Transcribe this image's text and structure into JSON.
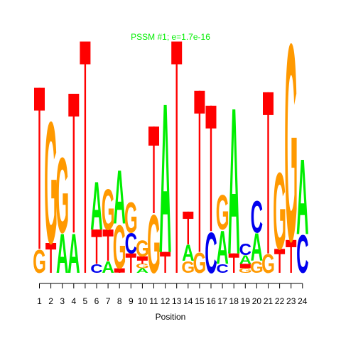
{
  "chart_data": {
    "type": "sequence-logo",
    "title": "PSSM #1; e=1.7e-16",
    "xlabel": "Position",
    "ylabel": "",
    "x_ticks": [
      "1",
      "2",
      "3",
      "4",
      "5",
      "6",
      "7",
      "8",
      "9",
      "10",
      "11",
      "12",
      "13",
      "14",
      "15",
      "16",
      "17",
      "18",
      "19",
      "20",
      "21",
      "22",
      "23",
      "24"
    ],
    "colors": {
      "A": "#00ee00",
      "C": "#0000ee",
      "G": "#ff9900",
      "T": "#ff0000",
      "title": "#00ee00"
    },
    "stacks": [
      {
        "position": 1,
        "letters": [
          {
            "base": "G",
            "height": 0.16
          },
          {
            "base": "T",
            "height": 1.08
          }
        ]
      },
      {
        "position": 2,
        "letters": [
          {
            "base": "T",
            "height": 0.2
          },
          {
            "base": "G",
            "height": 0.84
          }
        ]
      },
      {
        "position": 3,
        "letters": [
          {
            "base": "A",
            "height": 0.27
          },
          {
            "base": "G",
            "height": 0.52
          }
        ]
      },
      {
        "position": 4,
        "letters": [
          {
            "base": "A",
            "height": 0.27
          },
          {
            "base": "T",
            "height": 0.93
          }
        ]
      },
      {
        "position": 5,
        "letters": [
          {
            "base": "T",
            "height": 1.55
          }
        ]
      },
      {
        "position": 6,
        "letters": [
          {
            "base": "C",
            "height": 0.06
          },
          {
            "base": "T",
            "height": 0.23
          },
          {
            "base": "A",
            "height": 0.33
          }
        ]
      },
      {
        "position": 7,
        "letters": [
          {
            "base": "A",
            "height": 0.08
          },
          {
            "base": "T",
            "height": 0.21
          },
          {
            "base": "G",
            "height": 0.28
          }
        ]
      },
      {
        "position": 8,
        "letters": [
          {
            "base": "T",
            "height": 0.03
          },
          {
            "base": "G",
            "height": 0.3
          },
          {
            "base": "A",
            "height": 0.37
          }
        ]
      },
      {
        "position": 9,
        "letters": [
          {
            "base": "T",
            "height": 0.13
          },
          {
            "base": "C",
            "height": 0.14
          },
          {
            "base": "G",
            "height": 0.21
          }
        ]
      },
      {
        "position": 10,
        "letters": [
          {
            "base": "A",
            "height": 0.03
          },
          {
            "base": "G",
            "height": 0.03
          },
          {
            "base": "T",
            "height": 0.05
          },
          {
            "base": "G",
            "height": 0.11
          }
        ]
      },
      {
        "position": 11,
        "letters": [
          {
            "base": "G",
            "height": 0.4
          },
          {
            "base": "T",
            "height": 0.58
          }
        ]
      },
      {
        "position": 12,
        "letters": [
          {
            "base": "T",
            "height": 0.14
          },
          {
            "base": "A",
            "height": 1.03
          }
        ]
      },
      {
        "position": 13,
        "letters": [
          {
            "base": "T",
            "height": 1.55
          }
        ]
      },
      {
        "position": 14,
        "letters": [
          {
            "base": "G",
            "height": 0.08
          },
          {
            "base": "A",
            "height": 0.11
          },
          {
            "base": "T",
            "height": 0.22
          }
        ]
      },
      {
        "position": 15,
        "letters": [
          {
            "base": "G",
            "height": 0.14
          },
          {
            "base": "T",
            "height": 1.08
          }
        ]
      },
      {
        "position": 16,
        "letters": [
          {
            "base": "C",
            "height": 0.28
          },
          {
            "base": "T",
            "height": 0.84
          }
        ]
      },
      {
        "position": 17,
        "letters": [
          {
            "base": "C",
            "height": 0.06
          },
          {
            "base": "A",
            "height": 0.23
          },
          {
            "base": "G",
            "height": 0.24
          }
        ]
      },
      {
        "position": 18,
        "letters": [
          {
            "base": "T",
            "height": 0.13
          },
          {
            "base": "A",
            "height": 1.01
          }
        ]
      },
      {
        "position": 19,
        "letters": [
          {
            "base": "G",
            "height": 0.03
          },
          {
            "base": "T",
            "height": 0.03
          },
          {
            "base": "A",
            "height": 0.06
          },
          {
            "base": "C",
            "height": 0.08
          }
        ]
      },
      {
        "position": 20,
        "letters": [
          {
            "base": "G",
            "height": 0.08
          },
          {
            "base": "A",
            "height": 0.19
          },
          {
            "base": "C",
            "height": 0.22
          }
        ]
      },
      {
        "position": 21,
        "letters": [
          {
            "base": "G",
            "height": 0.13
          },
          {
            "base": "T",
            "height": 1.08
          }
        ]
      },
      {
        "position": 22,
        "letters": [
          {
            "base": "T",
            "height": 0.16
          },
          {
            "base": "G",
            "height": 0.53
          }
        ]
      },
      {
        "position": 23,
        "letters": [
          {
            "base": "T",
            "height": 0.22
          },
          {
            "base": "G",
            "height": 1.36
          }
        ]
      },
      {
        "position": 24,
        "letters": [
          {
            "base": "C",
            "height": 0.26
          },
          {
            "base": "A",
            "height": 0.52
          }
        ]
      }
    ]
  }
}
